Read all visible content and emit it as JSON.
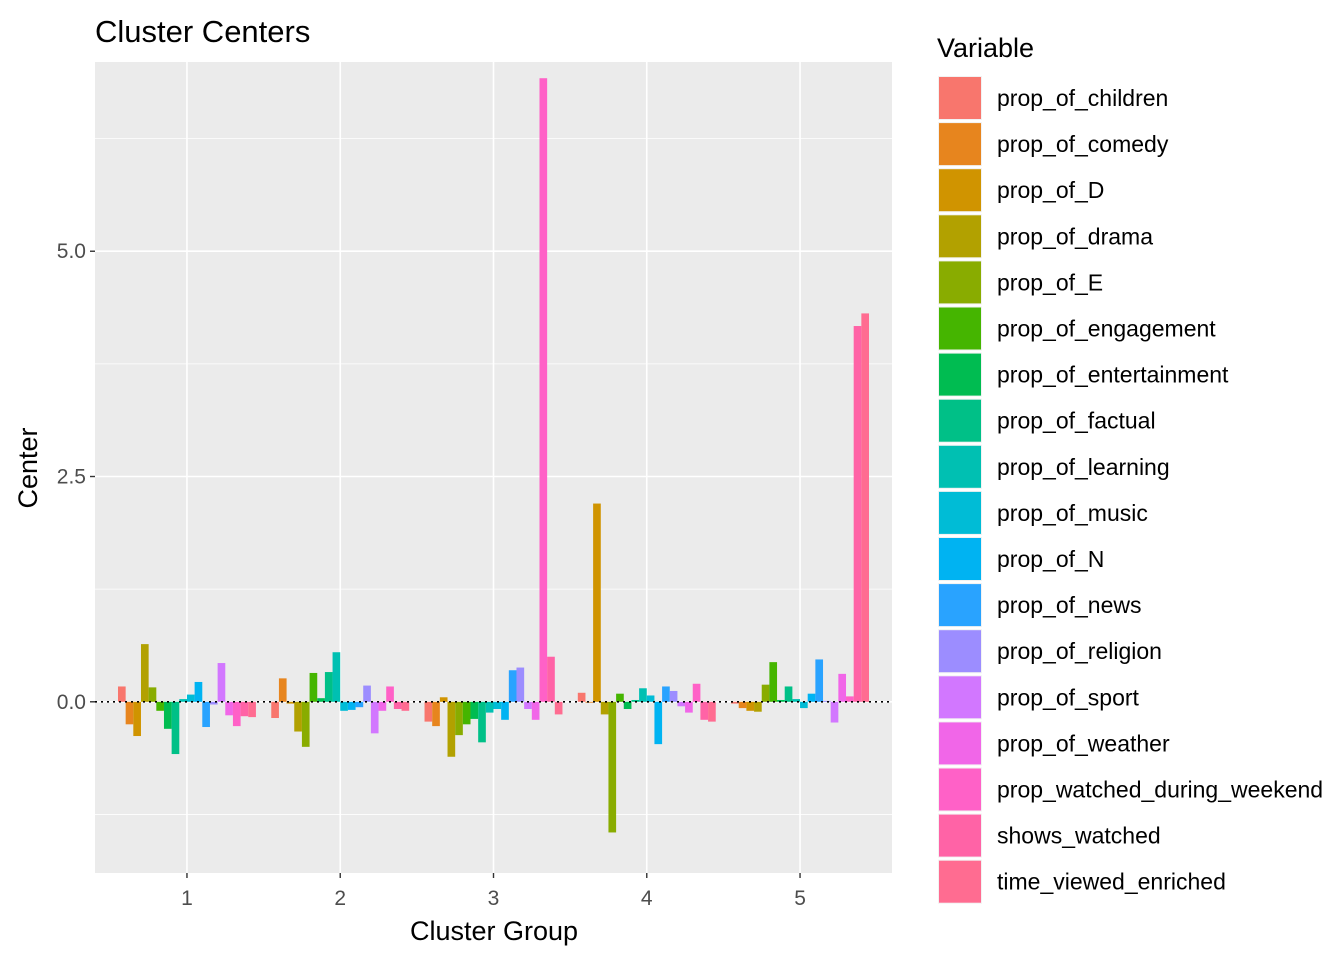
{
  "chart_data": {
    "type": "bar",
    "title": "Cluster Centers",
    "xlabel": "Cluster Group",
    "ylabel": "Center",
    "categories": [
      "1",
      "2",
      "3",
      "4",
      "5"
    ],
    "ylim": [
      -1.9,
      7.1
    ],
    "yticks": [
      {
        "value": 0.0,
        "label": "0.0"
      },
      {
        "value": 2.5,
        "label": "2.5"
      },
      {
        "value": 5.0,
        "label": "5.0"
      }
    ],
    "grid": true,
    "reference_line": {
      "value": 0,
      "style": "dotted"
    },
    "legend": {
      "title": "Variable",
      "position": "right"
    },
    "series": [
      {
        "name": "prop_of_children",
        "color": "#F8766D",
        "values": [
          0.17,
          -0.18,
          -0.22,
          0.1,
          -0.02
        ]
      },
      {
        "name": "prop_of_comedy",
        "color": "#E7851E",
        "values": [
          -0.25,
          0.26,
          -0.27,
          -0.01,
          -0.07
        ]
      },
      {
        "name": "prop_of_D",
        "color": "#D09400",
        "values": [
          -0.38,
          -0.02,
          0.05,
          2.2,
          -0.1
        ]
      },
      {
        "name": "prop_of_drama",
        "color": "#B2A100",
        "values": [
          0.64,
          -0.33,
          -0.61,
          -0.14,
          -0.11
        ]
      },
      {
        "name": "prop_of_E",
        "color": "#89AC00",
        "values": [
          0.16,
          -0.5,
          -0.37,
          -1.45,
          0.19
        ]
      },
      {
        "name": "prop_of_engagement",
        "color": "#45B500",
        "values": [
          -0.1,
          0.32,
          -0.25,
          0.09,
          0.44
        ]
      },
      {
        "name": "prop_of_entertainment",
        "color": "#00BC51",
        "values": [
          -0.3,
          0.04,
          -0.19,
          -0.08,
          0.02
        ]
      },
      {
        "name": "prop_of_factual",
        "color": "#00C087",
        "values": [
          -0.58,
          0.33,
          -0.45,
          0.02,
          0.17
        ]
      },
      {
        "name": "prop_of_learning",
        "color": "#00C0B2",
        "values": [
          0.03,
          0.55,
          -0.12,
          0.15,
          0.03
        ]
      },
      {
        "name": "prop_of_music",
        "color": "#00BCD6",
        "values": [
          0.08,
          -0.1,
          -0.08,
          0.07,
          -0.07
        ]
      },
      {
        "name": "prop_of_N",
        "color": "#00B3F2",
        "values": [
          0.22,
          -0.09,
          -0.2,
          -0.47,
          0.09
        ]
      },
      {
        "name": "prop_of_news",
        "color": "#29A3FF",
        "values": [
          -0.28,
          -0.06,
          0.35,
          0.17,
          0.47
        ]
      },
      {
        "name": "prop_of_religion",
        "color": "#9C8DFF",
        "values": [
          -0.03,
          0.18,
          0.38,
          0.12,
          0.01
        ]
      },
      {
        "name": "prop_of_sport",
        "color": "#D277FF",
        "values": [
          0.43,
          -0.35,
          -0.08,
          -0.05,
          -0.23
        ]
      },
      {
        "name": "prop_of_weather",
        "color": "#F166E8",
        "values": [
          -0.15,
          -0.1,
          -0.2,
          -0.12,
          0.31
        ]
      },
      {
        "name": "prop_watched_during_weekend",
        "color": "#FF61C7",
        "values": [
          -0.27,
          0.17,
          6.92,
          0.2,
          0.06
        ]
      },
      {
        "name": "shows_watched",
        "color": "#FF63A6",
        "values": [
          -0.16,
          -0.08,
          0.5,
          -0.2,
          4.17
        ]
      },
      {
        "name": "time_viewed_enriched",
        "color": "#FF6C91",
        "values": [
          -0.17,
          -0.1,
          -0.14,
          -0.22,
          4.31
        ]
      }
    ]
  }
}
